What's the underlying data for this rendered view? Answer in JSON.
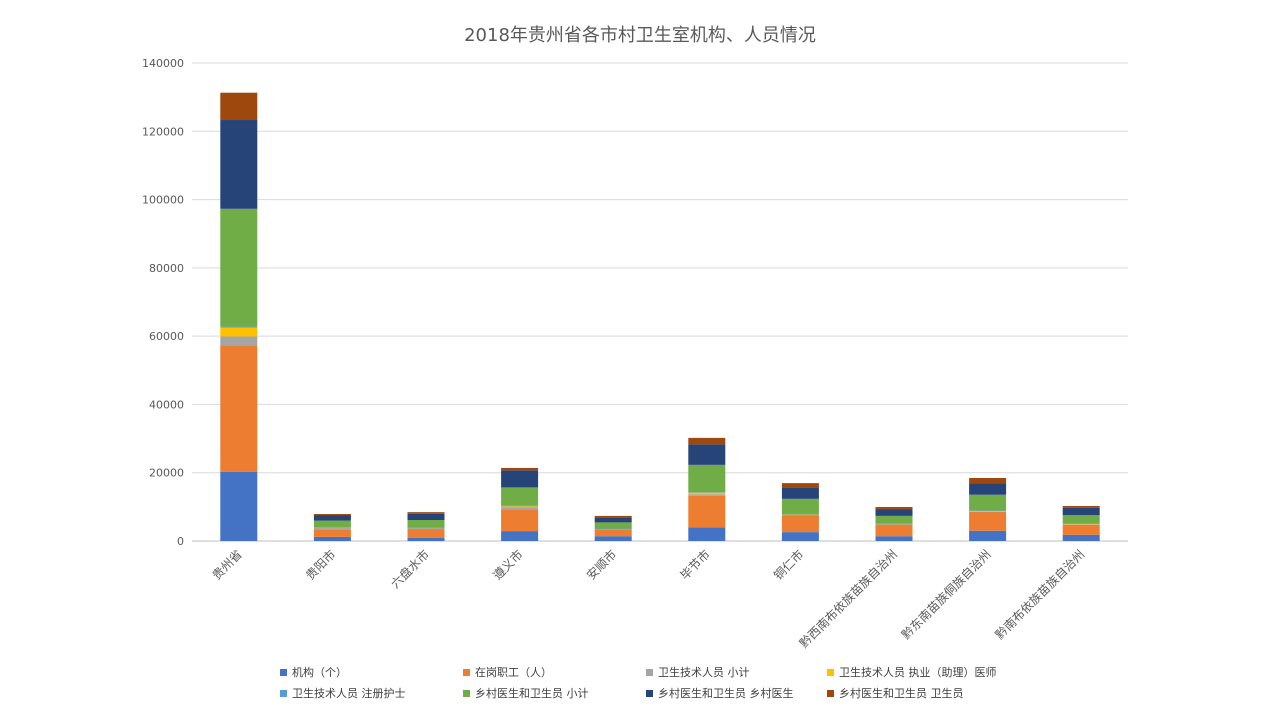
{
  "chart_data": {
    "type": "bar",
    "stacked": true,
    "title": "2018年贵州省各市村卫生室机构、人员情况",
    "xlabel": "",
    "ylabel": "",
    "ylim": [
      0,
      140000
    ],
    "yticks": [
      "0",
      "20000",
      "40000",
      "60000",
      "80000",
      "100000",
      "120000",
      "140000"
    ],
    "grid": true,
    "legend_position": "bottom",
    "categories": [
      "贵州省",
      "贵阳市",
      "六盘水市",
      "遵义市",
      "安顺市",
      "毕节市",
      "铜仁市",
      "黔西南布依族苗族自治州",
      "黔东南苗族侗族自治州",
      "黔南布依族苗族自治州"
    ],
    "series": [
      {
        "name": "机构（个）",
        "color": "#4472C4",
        "values": [
          20300,
          1200,
          900,
          2900,
          1400,
          4000,
          2600,
          1400,
          3000,
          1800
        ]
      },
      {
        "name": "在岗职工（人）",
        "color": "#ED7D31",
        "values": [
          37000,
          2200,
          2600,
          6400,
          2000,
          9200,
          4900,
          3400,
          5500,
          3000
        ]
      },
      {
        "name": "卫生技术人员 小计",
        "color": "#A5A5A5",
        "values": [
          2600,
          400,
          150,
          500,
          100,
          500,
          100,
          100,
          100,
          100
        ]
      },
      {
        "name": "卫生技术人员 执业（助理）医师",
        "color": "#FFC000",
        "values": [
          2600,
          200,
          150,
          400,
          100,
          500,
          200,
          100,
          300,
          200
        ]
      },
      {
        "name": "卫生技术人员 注册护士",
        "color": "#5B9BD5",
        "values": [
          300,
          100,
          50,
          100,
          50,
          100,
          50,
          50,
          50,
          50
        ]
      },
      {
        "name": "乡村医生和卫生员 小计",
        "color": "#70AD47",
        "values": [
          34500,
          1900,
          2300,
          5400,
          1800,
          8000,
          4500,
          2300,
          4600,
          2400
        ]
      },
      {
        "name": "乡村医生和卫生员 乡村医生",
        "color": "#264478",
        "values": [
          26000,
          1600,
          1800,
          5000,
          1500,
          6000,
          3400,
          2000,
          3400,
          2200
        ]
      },
      {
        "name": "乡村医生和卫生员 卫生员",
        "color": "#9E480E",
        "values": [
          8000,
          300,
          500,
          700,
          400,
          1900,
          1200,
          600,
          1500,
          500
        ]
      }
    ]
  }
}
